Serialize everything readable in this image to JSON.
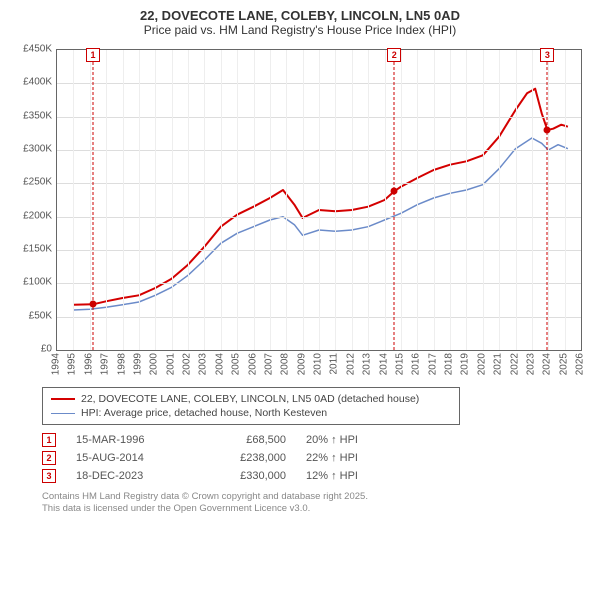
{
  "title": {
    "line1": "22, DOVECOTE LANE, COLEBY, LINCOLN, LN5 0AD",
    "line2": "Price paid vs. HM Land Registry's House Price Index (HPI)"
  },
  "chart": {
    "type": "line",
    "background_color": "#ffffff",
    "border_color": "#666666",
    "grid_color": "#dddddd",
    "xlim": [
      1994,
      2026
    ],
    "ylim": [
      0,
      450000
    ],
    "ytick_step": 50000,
    "yticks": [
      {
        "v": 0,
        "label": "£0"
      },
      {
        "v": 50000,
        "label": "£50K"
      },
      {
        "v": 100000,
        "label": "£100K"
      },
      {
        "v": 150000,
        "label": "£150K"
      },
      {
        "v": 200000,
        "label": "£200K"
      },
      {
        "v": 250000,
        "label": "£250K"
      },
      {
        "v": 300000,
        "label": "£300K"
      },
      {
        "v": 350000,
        "label": "£350K"
      },
      {
        "v": 400000,
        "label": "£400K"
      },
      {
        "v": 450000,
        "label": "£450K"
      }
    ],
    "xticks": [
      1994,
      1995,
      1996,
      1997,
      1998,
      1999,
      2000,
      2001,
      2002,
      2003,
      2004,
      2005,
      2006,
      2007,
      2008,
      2009,
      2010,
      2011,
      2012,
      2013,
      2014,
      2015,
      2016,
      2017,
      2018,
      2019,
      2020,
      2021,
      2022,
      2023,
      2024,
      2025,
      2026
    ],
    "series": [
      {
        "key": "property",
        "label": "22, DOVECOTE LANE, COLEBY, LINCOLN, LN5 0AD (detached house)",
        "color": "#d40000",
        "line_width": 2,
        "points": [
          [
            1995.0,
            68000
          ],
          [
            1996.2,
            68500
          ],
          [
            1997.0,
            73000
          ],
          [
            1998.0,
            78000
          ],
          [
            1999.0,
            82000
          ],
          [
            2000.0,
            93000
          ],
          [
            2001.0,
            107000
          ],
          [
            2002.0,
            128000
          ],
          [
            2003.0,
            155000
          ],
          [
            2004.0,
            185000
          ],
          [
            2005.0,
            203000
          ],
          [
            2006.0,
            215000
          ],
          [
            2007.0,
            228000
          ],
          [
            2007.8,
            240000
          ],
          [
            2008.5,
            218000
          ],
          [
            2009.0,
            198000
          ],
          [
            2010.0,
            210000
          ],
          [
            2011.0,
            208000
          ],
          [
            2012.0,
            210000
          ],
          [
            2013.0,
            215000
          ],
          [
            2014.0,
            225000
          ],
          [
            2014.6,
            238000
          ],
          [
            2015.0,
            245000
          ],
          [
            2016.0,
            258000
          ],
          [
            2017.0,
            270000
          ],
          [
            2018.0,
            278000
          ],
          [
            2019.0,
            283000
          ],
          [
            2020.0,
            292000
          ],
          [
            2021.0,
            320000
          ],
          [
            2022.0,
            360000
          ],
          [
            2022.7,
            385000
          ],
          [
            2023.2,
            392000
          ],
          [
            2023.6,
            355000
          ],
          [
            2023.95,
            330000
          ],
          [
            2024.3,
            332000
          ],
          [
            2024.8,
            338000
          ],
          [
            2025.2,
            335000
          ]
        ]
      },
      {
        "key": "hpi",
        "label": "HPI: Average price, detached house, North Kesteven",
        "color": "#6b8bc9",
        "line_width": 1.5,
        "points": [
          [
            1995.0,
            60000
          ],
          [
            1996.0,
            61000
          ],
          [
            1997.0,
            64000
          ],
          [
            1998.0,
            68000
          ],
          [
            1999.0,
            72000
          ],
          [
            2000.0,
            82000
          ],
          [
            2001.0,
            94000
          ],
          [
            2002.0,
            112000
          ],
          [
            2003.0,
            135000
          ],
          [
            2004.0,
            160000
          ],
          [
            2005.0,
            175000
          ],
          [
            2006.0,
            185000
          ],
          [
            2007.0,
            195000
          ],
          [
            2007.8,
            200000
          ],
          [
            2008.5,
            188000
          ],
          [
            2009.0,
            172000
          ],
          [
            2010.0,
            180000
          ],
          [
            2011.0,
            178000
          ],
          [
            2012.0,
            180000
          ],
          [
            2013.0,
            185000
          ],
          [
            2014.0,
            195000
          ],
          [
            2015.0,
            205000
          ],
          [
            2016.0,
            218000
          ],
          [
            2017.0,
            228000
          ],
          [
            2018.0,
            235000
          ],
          [
            2019.0,
            240000
          ],
          [
            2020.0,
            248000
          ],
          [
            2021.0,
            272000
          ],
          [
            2022.0,
            302000
          ],
          [
            2023.0,
            318000
          ],
          [
            2023.6,
            310000
          ],
          [
            2024.0,
            300000
          ],
          [
            2024.6,
            308000
          ],
          [
            2025.2,
            302000
          ]
        ]
      }
    ],
    "markers": [
      {
        "n": "1",
        "x": 1996.2,
        "y": 68500
      },
      {
        "n": "2",
        "x": 2014.6,
        "y": 238000
      },
      {
        "n": "3",
        "x": 2023.95,
        "y": 330000
      }
    ]
  },
  "legend": {
    "rows": [
      {
        "color": "#d40000",
        "width": 2,
        "label_path": "chart.series.0.label"
      },
      {
        "color": "#6b8bc9",
        "width": 1.5,
        "label_path": "chart.series.1.label"
      }
    ]
  },
  "transactions": [
    {
      "n": "1",
      "date": "15-MAR-1996",
      "price": "£68,500",
      "delta": "20% ↑ HPI"
    },
    {
      "n": "2",
      "date": "15-AUG-2014",
      "price": "£238,000",
      "delta": "22% ↑ HPI"
    },
    {
      "n": "3",
      "date": "18-DEC-2023",
      "price": "£330,000",
      "delta": "12% ↑ HPI"
    }
  ],
  "footer": {
    "line1": "Contains HM Land Registry data © Crown copyright and database right 2025.",
    "line2": "This data is licensed under the Open Government Licence v3.0."
  }
}
